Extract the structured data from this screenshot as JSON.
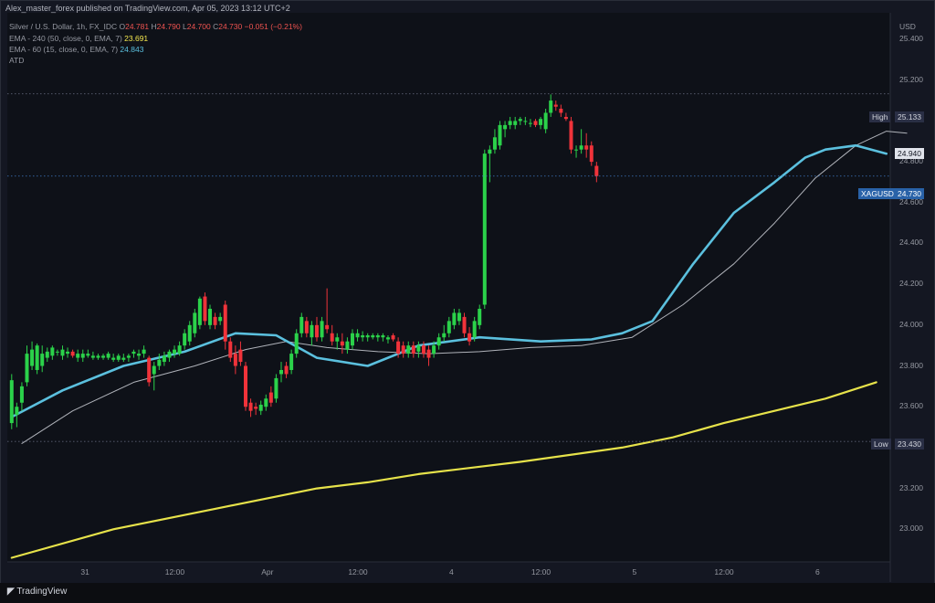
{
  "header": {
    "published": "Alex_master_forex published on TradingView.com, Apr 05, 2023 13:12 UTC+2"
  },
  "legend": {
    "symbol": "Silver / U.S. Dollar, 1h, FX_IDC",
    "open_label": "O",
    "open": "24.781",
    "high_label": "H",
    "high": "24.790",
    "low_label": "L",
    "low": "24.700",
    "close_label": "C",
    "close": "24.730",
    "change": "−0.051 (−0.21%)",
    "ema_a_label": "EMA - 240 (50, close, 0, EMA, 7)",
    "ema_a_value": "23.691",
    "ema_b_label": "EMA - 60 (15, close, 0, EMA, 7)",
    "ema_b_value": "24.843",
    "atd_label": "ATD"
  },
  "currency": "USD",
  "tags": {
    "high_label": "High",
    "high_value": "25.133",
    "ema_value": "24.940",
    "symbol_label": "XAGUSD",
    "symbol_value": "24.730",
    "low_label": "Low",
    "low_value": "23.430"
  },
  "footer": {
    "logo_text": "TradingView"
  },
  "colors": {
    "up": "#2bd24a",
    "down": "#f0333a",
    "ema_fast": "#5bc0de",
    "ema_slow": "#e6e24a",
    "ema_thin": "#b0b3ba",
    "grid": "#1e222d"
  },
  "chart_data": {
    "type": "candlestick",
    "y_ticks": [
      "25.400",
      "25.200",
      "25.000",
      "24.800",
      "24.600",
      "24.400",
      "24.200",
      "24.000",
      "23.800",
      "23.600",
      "23.400",
      "23.200",
      "23.000"
    ],
    "ylim": [
      22.84,
      25.53
    ],
    "x_ticks": [
      "31",
      "12:00",
      "Apr",
      "12:00",
      "4",
      "12:00",
      "5",
      "12:00",
      "6"
    ],
    "x_tick_index": [
      14.5,
      32.5,
      50.5,
      68.5,
      86.5,
      104.5,
      122.5,
      140.5,
      158.5
    ],
    "candles": [
      {
        "o": 23.52,
        "h": 23.76,
        "l": 23.49,
        "c": 23.73
      },
      {
        "o": 23.56,
        "h": 23.62,
        "l": 23.5,
        "c": 23.6
      },
      {
        "o": 23.62,
        "h": 23.72,
        "l": 23.58,
        "c": 23.7
      },
      {
        "o": 23.72,
        "h": 23.9,
        "l": 23.7,
        "c": 23.86
      },
      {
        "o": 23.8,
        "h": 23.92,
        "l": 23.78,
        "c": 23.88
      },
      {
        "o": 23.78,
        "h": 23.91,
        "l": 23.76,
        "c": 23.9
      },
      {
        "o": 23.8,
        "h": 23.9,
        "l": 23.77,
        "c": 23.86
      },
      {
        "o": 23.84,
        "h": 23.89,
        "l": 23.82,
        "c": 23.87
      },
      {
        "o": 23.85,
        "h": 23.9,
        "l": 23.83,
        "c": 23.89
      },
      {
        "o": 23.87,
        "h": 23.88,
        "l": 23.85,
        "c": 23.87
      },
      {
        "o": 23.85,
        "h": 23.9,
        "l": 23.83,
        "c": 23.88
      },
      {
        "o": 23.86,
        "h": 23.89,
        "l": 23.84,
        "c": 23.87
      },
      {
        "o": 23.87,
        "h": 23.88,
        "l": 23.84,
        "c": 23.85
      },
      {
        "o": 23.84,
        "h": 23.88,
        "l": 23.82,
        "c": 23.86
      },
      {
        "o": 23.84,
        "h": 23.88,
        "l": 23.82,
        "c": 23.86
      },
      {
        "o": 23.85,
        "h": 23.88,
        "l": 23.84,
        "c": 23.86
      },
      {
        "o": 23.84,
        "h": 23.87,
        "l": 23.83,
        "c": 23.85
      },
      {
        "o": 23.84,
        "h": 23.86,
        "l": 23.83,
        "c": 23.85
      },
      {
        "o": 23.84,
        "h": 23.86,
        "l": 23.83,
        "c": 23.85
      },
      {
        "o": 23.84,
        "h": 23.87,
        "l": 23.83,
        "c": 23.86
      },
      {
        "o": 23.83,
        "h": 23.86,
        "l": 23.82,
        "c": 23.84
      },
      {
        "o": 23.83,
        "h": 23.86,
        "l": 23.82,
        "c": 23.85
      },
      {
        "o": 23.83,
        "h": 23.86,
        "l": 23.82,
        "c": 23.84
      },
      {
        "o": 23.84,
        "h": 23.86,
        "l": 23.82,
        "c": 23.85
      },
      {
        "o": 23.86,
        "h": 23.88,
        "l": 23.84,
        "c": 23.87
      },
      {
        "o": 23.85,
        "h": 23.88,
        "l": 23.83,
        "c": 23.86
      },
      {
        "o": 23.86,
        "h": 23.9,
        "l": 23.84,
        "c": 23.88
      },
      {
        "o": 23.84,
        "h": 23.85,
        "l": 23.7,
        "c": 23.72
      },
      {
        "o": 23.76,
        "h": 23.82,
        "l": 23.68,
        "c": 23.8
      },
      {
        "o": 23.8,
        "h": 23.86,
        "l": 23.78,
        "c": 23.83
      },
      {
        "o": 23.82,
        "h": 23.87,
        "l": 23.8,
        "c": 23.85
      },
      {
        "o": 23.84,
        "h": 23.88,
        "l": 23.82,
        "c": 23.87
      },
      {
        "o": 23.86,
        "h": 23.9,
        "l": 23.84,
        "c": 23.88
      },
      {
        "o": 23.86,
        "h": 23.92,
        "l": 23.85,
        "c": 23.9
      },
      {
        "o": 23.9,
        "h": 23.98,
        "l": 23.88,
        "c": 23.96
      },
      {
        "o": 23.92,
        "h": 24.02,
        "l": 23.9,
        "c": 24.0
      },
      {
        "o": 23.96,
        "h": 24.08,
        "l": 23.94,
        "c": 24.06
      },
      {
        "o": 24.0,
        "h": 24.14,
        "l": 23.98,
        "c": 24.13
      },
      {
        "o": 24.14,
        "h": 24.16,
        "l": 24.0,
        "c": 24.02
      },
      {
        "o": 24.0,
        "h": 24.1,
        "l": 23.98,
        "c": 24.08
      },
      {
        "o": 24.04,
        "h": 24.06,
        "l": 23.98,
        "c": 24.0
      },
      {
        "o": 24.02,
        "h": 24.06,
        "l": 24.0,
        "c": 24.04
      },
      {
        "o": 24.1,
        "h": 24.12,
        "l": 23.88,
        "c": 23.92
      },
      {
        "o": 23.92,
        "h": 23.94,
        "l": 23.82,
        "c": 23.84
      },
      {
        "o": 23.86,
        "h": 23.9,
        "l": 23.76,
        "c": 23.8
      },
      {
        "o": 23.88,
        "h": 23.92,
        "l": 23.8,
        "c": 23.82
      },
      {
        "o": 23.8,
        "h": 23.82,
        "l": 23.58,
        "c": 23.6
      },
      {
        "o": 23.62,
        "h": 23.64,
        "l": 23.55,
        "c": 23.58
      },
      {
        "o": 23.6,
        "h": 23.62,
        "l": 23.56,
        "c": 23.59
      },
      {
        "o": 23.58,
        "h": 23.63,
        "l": 23.56,
        "c": 23.61
      },
      {
        "o": 23.6,
        "h": 23.66,
        "l": 23.58,
        "c": 23.64
      },
      {
        "o": 23.67,
        "h": 23.7,
        "l": 23.6,
        "c": 23.62
      },
      {
        "o": 23.64,
        "h": 23.76,
        "l": 23.62,
        "c": 23.74
      },
      {
        "o": 23.76,
        "h": 23.82,
        "l": 23.72,
        "c": 23.78
      },
      {
        "o": 23.8,
        "h": 23.82,
        "l": 23.74,
        "c": 23.76
      },
      {
        "o": 23.78,
        "h": 23.88,
        "l": 23.76,
        "c": 23.86
      },
      {
        "o": 23.86,
        "h": 23.98,
        "l": 23.84,
        "c": 23.96
      },
      {
        "o": 23.96,
        "h": 24.06,
        "l": 23.94,
        "c": 24.04
      },
      {
        "o": 24.02,
        "h": 24.04,
        "l": 23.94,
        "c": 23.96
      },
      {
        "o": 23.94,
        "h": 24.02,
        "l": 23.9,
        "c": 24.0
      },
      {
        "o": 24.0,
        "h": 24.04,
        "l": 23.92,
        "c": 23.94
      },
      {
        "o": 23.94,
        "h": 24.04,
        "l": 23.92,
        "c": 24.02
      },
      {
        "o": 24.0,
        "h": 24.18,
        "l": 23.96,
        "c": 23.98
      },
      {
        "o": 23.96,
        "h": 24.0,
        "l": 23.9,
        "c": 23.92
      },
      {
        "o": 23.92,
        "h": 23.96,
        "l": 23.88,
        "c": 23.94
      },
      {
        "o": 23.92,
        "h": 23.96,
        "l": 23.86,
        "c": 23.9
      },
      {
        "o": 23.88,
        "h": 23.94,
        "l": 23.86,
        "c": 23.92
      },
      {
        "o": 23.9,
        "h": 23.98,
        "l": 23.88,
        "c": 23.96
      },
      {
        "o": 23.94,
        "h": 23.98,
        "l": 23.92,
        "c": 23.96
      },
      {
        "o": 23.94,
        "h": 23.97,
        "l": 23.92,
        "c": 23.95
      },
      {
        "o": 23.94,
        "h": 23.96,
        "l": 23.92,
        "c": 23.95
      },
      {
        "o": 23.94,
        "h": 23.96,
        "l": 23.93,
        "c": 23.95
      },
      {
        "o": 23.94,
        "h": 23.96,
        "l": 23.92,
        "c": 23.95
      },
      {
        "o": 23.94,
        "h": 23.96,
        "l": 23.92,
        "c": 23.95
      },
      {
        "o": 23.93,
        "h": 23.95,
        "l": 23.91,
        "c": 23.94
      },
      {
        "o": 23.95,
        "h": 23.96,
        "l": 23.92,
        "c": 23.93
      },
      {
        "o": 23.92,
        "h": 23.94,
        "l": 23.84,
        "c": 23.86
      },
      {
        "o": 23.9,
        "h": 23.92,
        "l": 23.84,
        "c": 23.86
      },
      {
        "o": 23.86,
        "h": 23.92,
        "l": 23.84,
        "c": 23.9
      },
      {
        "o": 23.9,
        "h": 23.92,
        "l": 23.84,
        "c": 23.86
      },
      {
        "o": 23.87,
        "h": 23.92,
        "l": 23.84,
        "c": 23.9
      },
      {
        "o": 23.9,
        "h": 23.92,
        "l": 23.84,
        "c": 23.86
      },
      {
        "o": 23.88,
        "h": 23.9,
        "l": 23.8,
        "c": 23.84
      },
      {
        "o": 23.86,
        "h": 23.92,
        "l": 23.84,
        "c": 23.9
      },
      {
        "o": 23.9,
        "h": 23.96,
        "l": 23.88,
        "c": 23.94
      },
      {
        "o": 23.94,
        "h": 24.0,
        "l": 23.92,
        "c": 23.96
      },
      {
        "o": 23.96,
        "h": 24.04,
        "l": 23.94,
        "c": 24.02
      },
      {
        "o": 24.0,
        "h": 24.08,
        "l": 23.98,
        "c": 24.06
      },
      {
        "o": 24.02,
        "h": 24.08,
        "l": 24.0,
        "c": 24.06
      },
      {
        "o": 24.04,
        "h": 24.06,
        "l": 23.94,
        "c": 23.96
      },
      {
        "o": 23.96,
        "h": 23.99,
        "l": 23.9,
        "c": 23.92
      },
      {
        "o": 23.94,
        "h": 24.04,
        "l": 23.92,
        "c": 24.02
      },
      {
        "o": 24.0,
        "h": 24.1,
        "l": 23.98,
        "c": 24.08
      },
      {
        "o": 24.1,
        "h": 24.86,
        "l": 24.08,
        "c": 24.84
      },
      {
        "o": 24.84,
        "h": 24.88,
        "l": 24.7,
        "c": 24.86
      },
      {
        "o": 24.86,
        "h": 24.96,
        "l": 24.84,
        "c": 24.92
      },
      {
        "o": 24.88,
        "h": 25.0,
        "l": 24.86,
        "c": 24.98
      },
      {
        "o": 24.96,
        "h": 25.0,
        "l": 24.92,
        "c": 24.98
      },
      {
        "o": 24.98,
        "h": 25.02,
        "l": 24.96,
        "c": 25.0
      },
      {
        "o": 24.98,
        "h": 25.02,
        "l": 24.96,
        "c": 25.0
      },
      {
        "o": 25.0,
        "h": 25.02,
        "l": 24.98,
        "c": 25.01
      },
      {
        "o": 25.0,
        "h": 25.02,
        "l": 24.98,
        "c": 25.0
      },
      {
        "o": 24.99,
        "h": 25.01,
        "l": 24.97,
        "c": 24.99
      },
      {
        "o": 25.0,
        "h": 25.01,
        "l": 24.97,
        "c": 24.98
      },
      {
        "o": 24.98,
        "h": 25.02,
        "l": 24.96,
        "c": 25.01
      },
      {
        "o": 24.96,
        "h": 25.06,
        "l": 24.94,
        "c": 25.04
      },
      {
        "o": 25.04,
        "h": 25.13,
        "l": 25.02,
        "c": 25.1
      },
      {
        "o": 25.08,
        "h": 25.1,
        "l": 25.05,
        "c": 25.07
      },
      {
        "o": 25.06,
        "h": 25.08,
        "l": 25.02,
        "c": 25.04
      },
      {
        "o": 25.02,
        "h": 25.04,
        "l": 25.0,
        "c": 25.01
      },
      {
        "o": 25.0,
        "h": 25.02,
        "l": 24.84,
        "c": 24.86
      },
      {
        "o": 24.86,
        "h": 24.88,
        "l": 24.82,
        "c": 24.86
      },
      {
        "o": 24.86,
        "h": 24.96,
        "l": 24.84,
        "c": 24.88
      },
      {
        "o": 24.88,
        "h": 24.94,
        "l": 24.82,
        "c": 24.86
      },
      {
        "o": 24.88,
        "h": 24.9,
        "l": 24.78,
        "c": 24.8
      },
      {
        "o": 24.78,
        "h": 24.8,
        "l": 24.7,
        "c": 24.73
      }
    ],
    "ema_fast": [
      [
        0,
        23.55
      ],
      [
        10,
        23.68
      ],
      [
        22,
        23.8
      ],
      [
        34,
        23.87
      ],
      [
        44,
        23.96
      ],
      [
        52,
        23.95
      ],
      [
        60,
        23.84
      ],
      [
        70,
        23.8
      ],
      [
        80,
        23.9
      ],
      [
        92,
        23.94
      ],
      [
        104,
        23.92
      ],
      [
        114,
        23.93
      ],
      [
        120,
        23.96
      ],
      [
        126,
        24.02
      ],
      [
        134,
        24.3
      ],
      [
        142,
        24.55
      ],
      [
        150,
        24.7
      ],
      [
        156,
        24.82
      ],
      [
        160,
        24.86
      ],
      [
        166,
        24.88
      ],
      [
        172,
        24.84
      ]
    ],
    "ema_thin": [
      [
        2,
        23.42
      ],
      [
        12,
        23.58
      ],
      [
        24,
        23.72
      ],
      [
        36,
        23.8
      ],
      [
        46,
        23.88
      ],
      [
        54,
        23.92
      ],
      [
        62,
        23.89
      ],
      [
        72,
        23.87
      ],
      [
        82,
        23.86
      ],
      [
        92,
        23.87
      ],
      [
        102,
        23.89
      ],
      [
        112,
        23.9
      ],
      [
        122,
        23.94
      ],
      [
        132,
        24.1
      ],
      [
        142,
        24.3
      ],
      [
        150,
        24.5
      ],
      [
        158,
        24.72
      ],
      [
        166,
        24.88
      ],
      [
        172,
        24.95
      ],
      [
        176,
        24.94
      ]
    ],
    "ema_slow": [
      [
        0,
        22.86
      ],
      [
        20,
        23.0
      ],
      [
        40,
        23.1
      ],
      [
        60,
        23.2
      ],
      [
        70,
        23.23
      ],
      [
        80,
        23.27
      ],
      [
        100,
        23.33
      ],
      [
        120,
        23.4
      ],
      [
        130,
        23.45
      ],
      [
        140,
        23.52
      ],
      [
        150,
        23.58
      ],
      [
        160,
        23.64
      ],
      [
        170,
        23.72
      ]
    ]
  }
}
